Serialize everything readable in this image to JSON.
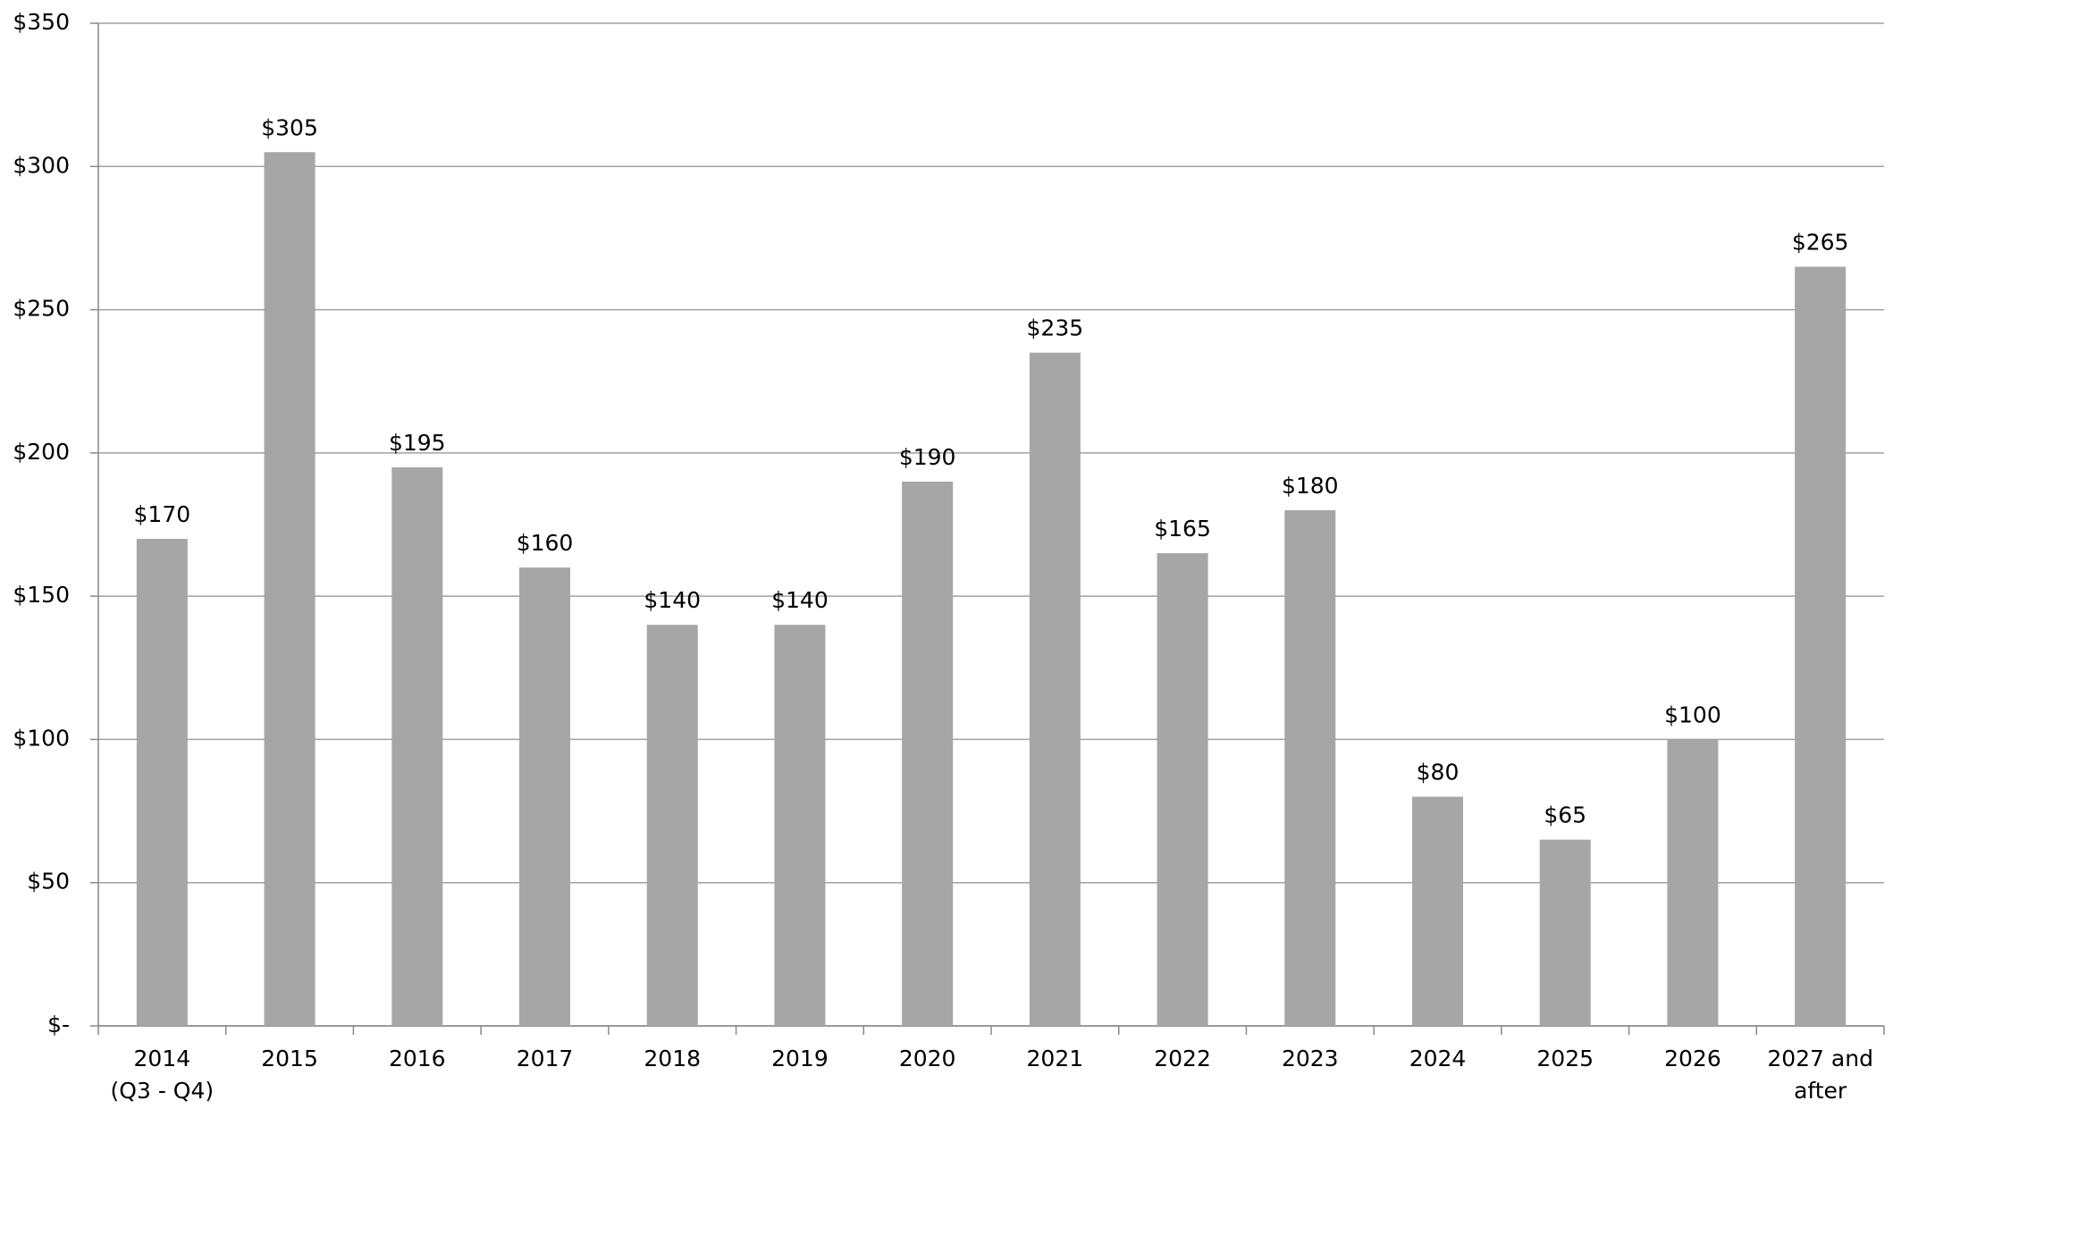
{
  "chart_data": {
    "type": "bar",
    "categories": [
      "2014\n(Q3 - Q4)",
      "2015",
      "2016",
      "2017",
      "2018",
      "2019",
      "2020",
      "2021",
      "2022",
      "2023",
      "2024",
      "2025",
      "2026",
      "2027 and\nafter"
    ],
    "values": [
      170,
      305,
      195,
      160,
      140,
      140,
      190,
      235,
      165,
      180,
      80,
      65,
      100,
      265
    ],
    "value_labels": [
      "$170",
      "$305",
      "$195",
      "$160",
      "$140",
      "$140",
      "$190",
      "$235",
      "$165",
      "$180",
      "$80",
      "$65",
      "$100",
      "$265"
    ],
    "color": "#a6a6a6",
    "ylim": [
      0,
      350
    ],
    "yticks": [
      {
        "value": 0,
        "label": "$-"
      },
      {
        "value": 50,
        "label": "$50"
      },
      {
        "value": 100,
        "label": "$100"
      },
      {
        "value": 150,
        "label": "$150"
      },
      {
        "value": 200,
        "label": "$200"
      },
      {
        "value": 250,
        "label": "$250"
      },
      {
        "value": 300,
        "label": "$300"
      },
      {
        "value": 350,
        "label": "$350"
      }
    ],
    "grid": true
  }
}
